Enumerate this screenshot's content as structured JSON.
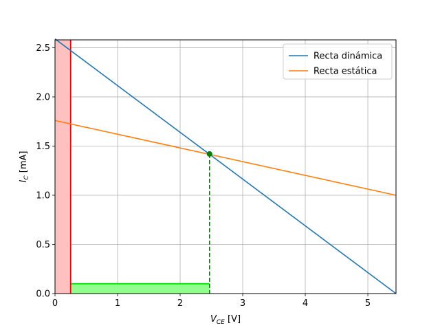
{
  "chart_data": {
    "type": "line",
    "xlabel": {
      "main": "V",
      "sub": "CE",
      "unit": " [V]"
    },
    "ylabel": {
      "main": "I",
      "sub": "C",
      "unit": " [mA]"
    },
    "xlim": [
      0,
      5.45
    ],
    "ylim": [
      0,
      2.58
    ],
    "xticks": [
      0,
      1,
      2,
      3,
      4,
      5
    ],
    "yticks": [
      0.0,
      0.5,
      1.0,
      1.5,
      2.0,
      2.5
    ],
    "xtick_labels": [
      "0",
      "1",
      "2",
      "3",
      "4",
      "5"
    ],
    "ytick_labels": [
      "0.0",
      "0.5",
      "1.0",
      "1.5",
      "2.0",
      "2.5"
    ],
    "grid": true,
    "legend_position": "top-right",
    "series": [
      {
        "name": "Recta dinámica",
        "color": "#1f77b4",
        "x": [
          0,
          5.45
        ],
        "y": [
          2.59,
          0
        ]
      },
      {
        "name": "Recta estática",
        "color": "#ff7f0e",
        "x": [
          0,
          5.45
        ],
        "y": [
          1.76,
          1.0
        ]
      }
    ],
    "operating_point": {
      "x": 2.47,
      "y": 1.42,
      "color": "#008000"
    },
    "saturation_region": {
      "x": [
        0,
        0.25
      ],
      "fill_color": "#ffc0c0",
      "edge_color": "#ff0000"
    },
    "cutoff_region": {
      "x": [
        0.25,
        2.47
      ],
      "y": [
        0,
        0.1
      ],
      "fill_color": "#90ff90",
      "edge_color": "#00e000"
    }
  }
}
